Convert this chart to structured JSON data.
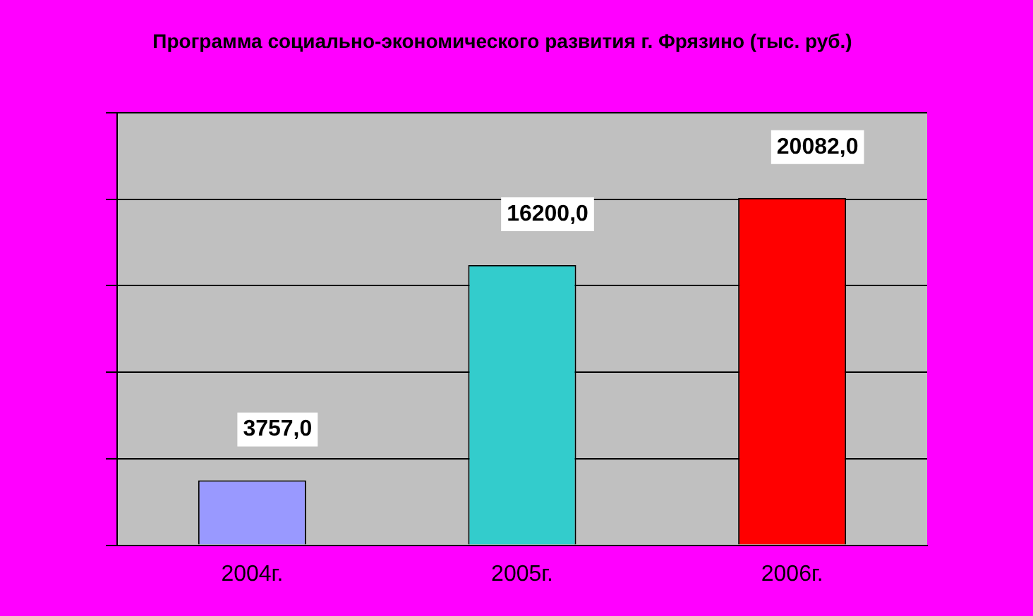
{
  "chart_data": {
    "type": "bar",
    "title": "Программа социально-экономического развития г. Фрязино (тыс. руб.)",
    "categories": [
      "2004г.",
      "2005г.",
      "2006г."
    ],
    "values": [
      3757,
      16200,
      20082
    ],
    "colors": [
      "#9999ff",
      "#33cccc",
      "#ff0000"
    ],
    "value_labels": [
      "3757,0",
      "16200,0",
      "20082,0"
    ],
    "tick_labels": "x",
    "grid": "y",
    "legend": false
  }
}
